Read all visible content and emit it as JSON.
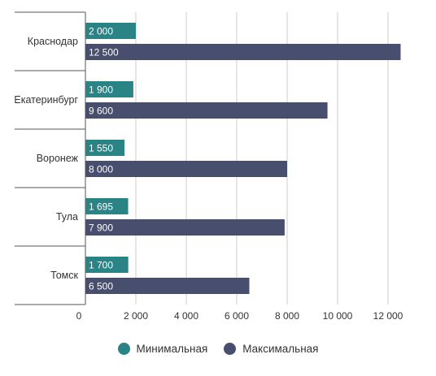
{
  "colors": {
    "min": "#2a8385",
    "max": "#484e6d",
    "grid": "#cccccc",
    "axis": "#555555"
  },
  "chart_data": {
    "type": "bar",
    "orientation": "horizontal",
    "categories": [
      "Краснодар",
      "Екатеринбург",
      "Воронеж",
      "Тула",
      "Томск"
    ],
    "series": [
      {
        "name": "Минимальная",
        "values": [
          2000,
          1900,
          1550,
          1695,
          1700
        ],
        "labels": [
          "2 000",
          "1 900",
          "1 550",
          "1 695",
          "1 700"
        ]
      },
      {
        "name": "Максимальная",
        "values": [
          12500,
          9600,
          8000,
          7900,
          6500
        ],
        "labels": [
          "12 500",
          "9 600",
          "8 000",
          "7 900",
          "6 500"
        ]
      }
    ],
    "xlim": [
      0,
      12500
    ],
    "xticks": [
      0,
      2000,
      4000,
      6000,
      8000,
      10000,
      12000
    ],
    "xtick_labels": [
      "0",
      "2 000",
      "4 000",
      "6 000",
      "8 000",
      "10 000",
      "12 000"
    ],
    "grid": true,
    "legend_position": "bottom"
  }
}
